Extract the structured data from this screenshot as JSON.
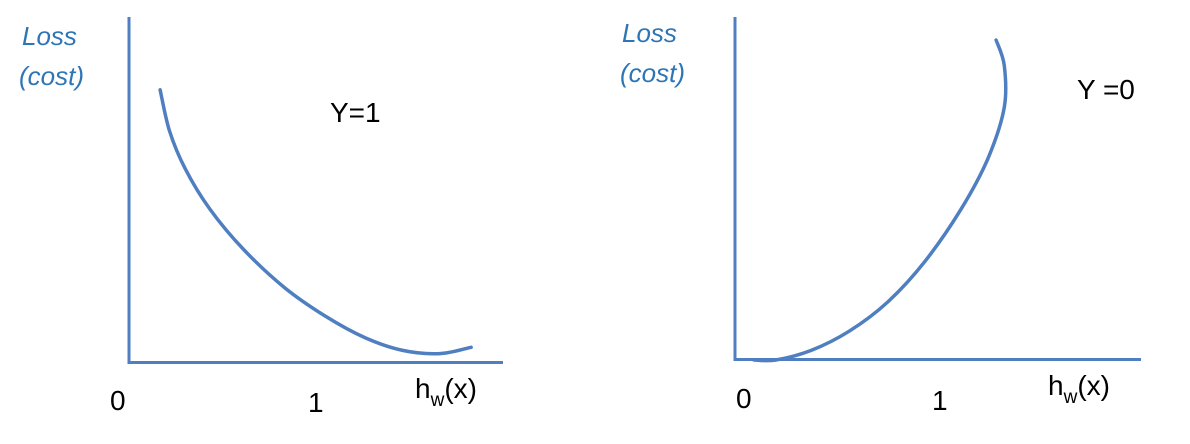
{
  "chart_data": [
    {
      "type": "line",
      "ylabel_lines": [
        "Loss",
        "(cost)"
      ],
      "annotation": "Y=1",
      "x_ticks": [
        "0",
        "1"
      ],
      "xlabel": {
        "main": "h",
        "sub": "w",
        "rest": "(x)"
      },
      "series": [
        {
          "color": "#4F7FC0",
          "points": [
            [
              0.1,
              0.87
            ],
            [
              0.13,
              0.74
            ],
            [
              0.18,
              0.62
            ],
            [
              0.26,
              0.49
            ],
            [
              0.37,
              0.36
            ],
            [
              0.5,
              0.24
            ],
            [
              0.63,
              0.15
            ],
            [
              0.76,
              0.08
            ],
            [
              0.88,
              0.04
            ],
            [
              1.0,
              0.03
            ],
            [
              1.1,
              0.05
            ]
          ]
        }
      ],
      "xlim": [
        0,
        1.2
      ],
      "ylim": [
        0,
        1
      ]
    },
    {
      "type": "line",
      "ylabel_lines": [
        "Loss",
        "(cost)"
      ],
      "annotation": "Y =0",
      "x_ticks": [
        "0",
        "1"
      ],
      "xlabel": {
        "main": "h",
        "sub": "w",
        "rest": "(x)"
      },
      "series": [
        {
          "color": "#4F7FC0",
          "points": [
            [
              0.07,
              0.0
            ],
            [
              0.15,
              0.0
            ],
            [
              0.28,
              0.03
            ],
            [
              0.42,
              0.09
            ],
            [
              0.56,
              0.18
            ],
            [
              0.7,
              0.31
            ],
            [
              0.83,
              0.47
            ],
            [
              0.93,
              0.63
            ],
            [
              0.99,
              0.79
            ],
            [
              0.99,
              0.92
            ],
            [
              0.96,
              1.0
            ]
          ]
        }
      ],
      "xlim": [
        0,
        1.2
      ],
      "ylim": [
        0,
        1
      ]
    }
  ],
  "colors": {
    "axis": "#4F7FC0",
    "curve": "#4F7FC0",
    "label": "#2E75B6",
    "text": "#000000"
  }
}
